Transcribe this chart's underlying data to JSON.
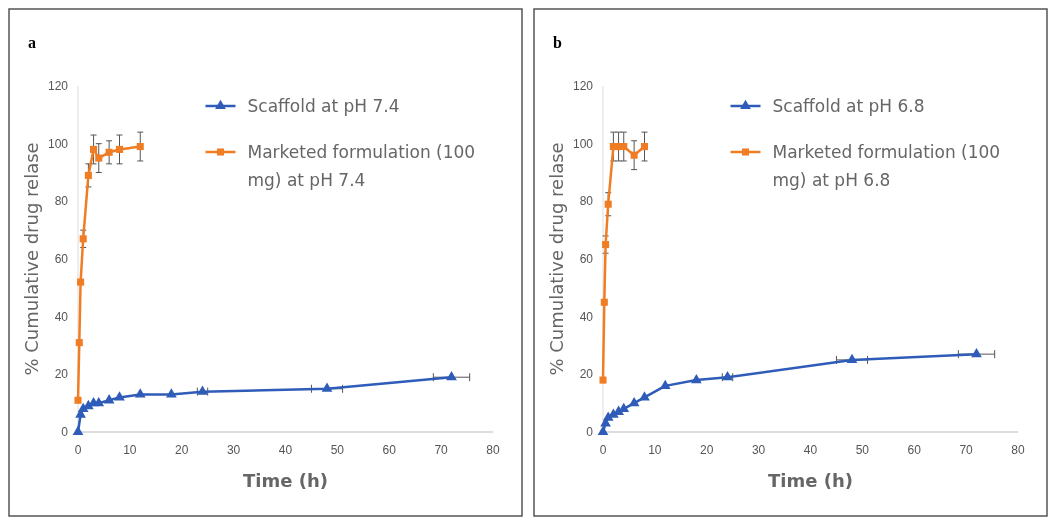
{
  "chart_data": [
    {
      "type": "line",
      "title": "a",
      "xlabel": "Time (h)",
      "ylabel": "% Cumulative drug relase",
      "xlim": [
        0,
        80
      ],
      "xticks": [
        0,
        10,
        20,
        30,
        40,
        50,
        60,
        70,
        80
      ],
      "ylim": [
        0,
        120
      ],
      "yticks": [
        0,
        20,
        40,
        60,
        80,
        100,
        120
      ],
      "legend": "top right",
      "line_style": "solid",
      "series": [
        {
          "name": "Scaffold at pH 7.4",
          "color": "#2e5cb8",
          "marker": "triangle",
          "x": [
            0,
            0.5,
            1,
            2,
            3,
            4,
            6,
            8,
            12,
            18,
            24,
            48,
            72
          ],
          "values": [
            0,
            6,
            8,
            9,
            10,
            10,
            11,
            12,
            13,
            13,
            14,
            15,
            19
          ],
          "xerrors": [
            null,
            null,
            null,
            null,
            null,
            null,
            null,
            null,
            null,
            null,
            1,
            3,
            3.5
          ]
        },
        {
          "name": "Marketed formulation (100 mg) at pH 7.4",
          "color": "#f07d24",
          "marker": "square",
          "x": [
            0,
            0.25,
            0.5,
            1,
            2,
            3,
            4,
            6,
            8,
            12
          ],
          "values": [
            11,
            31,
            52,
            67,
            89,
            98,
            95,
            97,
            98,
            99
          ],
          "errors": [
            null,
            null,
            null,
            3,
            4,
            5,
            5,
            4,
            5,
            5
          ]
        }
      ]
    },
    {
      "type": "line",
      "title": "b",
      "xlabel": "Time (h)",
      "ylabel": "% Cumulative drug relase",
      "xlim": [
        0,
        80
      ],
      "xticks": [
        0,
        10,
        20,
        30,
        40,
        50,
        60,
        70,
        80
      ],
      "ylim": [
        0,
        120
      ],
      "yticks": [
        0,
        20,
        40,
        60,
        80,
        100,
        120
      ],
      "legend": "top right",
      "line_style": "solid",
      "series": [
        {
          "name": "Scaffold at pH 6.8",
          "color": "#2e5cb8",
          "marker": "triangle",
          "x": [
            0,
            0.5,
            1,
            2,
            3,
            4,
            6,
            8,
            12,
            18,
            24,
            48,
            72
          ],
          "values": [
            0,
            3,
            5,
            6,
            7,
            8,
            10,
            12,
            16,
            18,
            19,
            25,
            27
          ],
          "xerrors": [
            null,
            null,
            null,
            null,
            null,
            null,
            null,
            null,
            null,
            null,
            1,
            3,
            3.5
          ]
        },
        {
          "name": "Marketed formulation (100 mg) at pH 6.8",
          "color": "#f07d24",
          "marker": "square",
          "x": [
            0,
            0.25,
            0.5,
            1,
            2,
            3,
            4,
            6,
            8
          ],
          "values": [
            18,
            45,
            65,
            79,
            99,
            99,
            99,
            96,
            99
          ],
          "errors": [
            null,
            null,
            3,
            4,
            5,
            5,
            5,
            5,
            5
          ]
        }
      ]
    }
  ]
}
